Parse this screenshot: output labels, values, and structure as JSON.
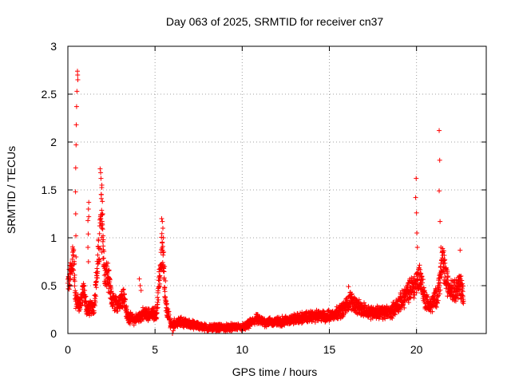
{
  "chart_data": {
    "type": "scatter",
    "title": "Day 063 of 2025, SRMTID for receiver cn37",
    "xlabel": "GPS time / hours",
    "ylabel": "SRMTID / TECUs",
    "xlim": [
      0,
      24
    ],
    "ylim": [
      0,
      3
    ],
    "xticks": [
      0,
      5,
      10,
      15,
      20
    ],
    "xtick_labels": [
      "0",
      "5",
      "10",
      "15",
      "20"
    ],
    "yticks": [
      0,
      0.5,
      1,
      1.5,
      2,
      2.5,
      3
    ],
    "ytick_labels": [
      "0",
      "0.5",
      "1",
      "1.5",
      "2",
      "2.5",
      "3"
    ],
    "grid": true,
    "marker": "+",
    "color": "#ff0000",
    "series": [
      {
        "name": "SRMTID",
        "profile": [
          [
            0.0,
            0.5
          ],
          [
            0.2,
            0.65
          ],
          [
            0.3,
            0.85
          ],
          [
            0.45,
            0.35
          ],
          [
            0.7,
            0.3
          ],
          [
            0.9,
            0.45
          ],
          [
            1.1,
            0.25
          ],
          [
            1.5,
            0.28
          ],
          [
            1.8,
            0.9
          ],
          [
            1.95,
            1.3
          ],
          [
            2.1,
            0.6
          ],
          [
            2.3,
            0.6
          ],
          [
            2.5,
            0.35
          ],
          [
            2.8,
            0.3
          ],
          [
            3.2,
            0.4
          ],
          [
            3.4,
            0.18
          ],
          [
            3.8,
            0.14
          ],
          [
            4.3,
            0.2
          ],
          [
            4.8,
            0.2
          ],
          [
            5.1,
            0.22
          ],
          [
            5.4,
            0.9
          ],
          [
            5.6,
            0.3
          ],
          [
            5.9,
            0.1
          ],
          [
            6.5,
            0.12
          ],
          [
            7.2,
            0.09
          ],
          [
            8.0,
            0.06
          ],
          [
            9.0,
            0.06
          ],
          [
            10.2,
            0.07
          ],
          [
            10.8,
            0.15
          ],
          [
            11.2,
            0.12
          ],
          [
            12.0,
            0.12
          ],
          [
            13.0,
            0.15
          ],
          [
            14.0,
            0.18
          ],
          [
            15.0,
            0.18
          ],
          [
            15.8,
            0.25
          ],
          [
            16.2,
            0.35
          ],
          [
            16.8,
            0.25
          ],
          [
            17.5,
            0.22
          ],
          [
            18.5,
            0.22
          ],
          [
            19.2,
            0.35
          ],
          [
            19.6,
            0.45
          ],
          [
            19.9,
            0.5
          ],
          [
            20.2,
            0.6
          ],
          [
            20.5,
            0.35
          ],
          [
            20.8,
            0.28
          ],
          [
            21.2,
            0.4
          ],
          [
            21.5,
            0.75
          ],
          [
            21.8,
            0.5
          ],
          [
            22.2,
            0.45
          ],
          [
            22.5,
            0.5
          ],
          [
            22.7,
            0.4
          ]
        ],
        "spikes": [
          [
            0.55,
            2.74
          ],
          [
            0.56,
            2.7
          ],
          [
            0.57,
            2.65
          ],
          [
            0.52,
            2.53
          ],
          [
            0.5,
            2.37
          ],
          [
            0.48,
            2.18
          ],
          [
            0.47,
            1.97
          ],
          [
            0.45,
            1.73
          ],
          [
            0.44,
            1.48
          ],
          [
            0.45,
            1.25
          ],
          [
            0.46,
            1.02
          ],
          [
            0.47,
            0.8
          ],
          [
            1.2,
            1.37
          ],
          [
            1.18,
            1.3
          ],
          [
            1.2,
            1.22
          ],
          [
            1.15,
            1.18
          ],
          [
            1.17,
            1.04
          ],
          [
            1.15,
            0.9
          ],
          [
            1.18,
            0.75
          ],
          [
            1.85,
            1.72
          ],
          [
            1.88,
            1.68
          ],
          [
            1.9,
            1.62
          ],
          [
            1.95,
            1.55
          ],
          [
            1.92,
            1.45
          ],
          [
            1.98,
            1.38
          ],
          [
            2.0,
            1.25
          ],
          [
            1.96,
            1.1
          ],
          [
            2.02,
            1.02
          ],
          [
            1.95,
            0.85
          ],
          [
            5.38,
            1.2
          ],
          [
            5.42,
            1.17
          ],
          [
            5.45,
            1.1
          ],
          [
            5.48,
            1.0
          ],
          [
            5.5,
            0.85
          ],
          [
            5.55,
            0.7
          ],
          [
            5.6,
            0.55
          ],
          [
            4.1,
            0.57
          ],
          [
            4.15,
            0.5
          ],
          [
            4.2,
            0.45
          ],
          [
            6.0,
            0.0
          ],
          [
            6.05,
            0.03
          ],
          [
            16.1,
            0.49
          ],
          [
            19.98,
            1.62
          ],
          [
            19.95,
            1.42
          ],
          [
            20.0,
            1.26
          ],
          [
            20.02,
            1.05
          ],
          [
            20.05,
            0.9
          ],
          [
            21.3,
            2.12
          ],
          [
            21.33,
            1.81
          ],
          [
            21.3,
            1.49
          ],
          [
            21.35,
            1.17
          ],
          [
            21.4,
            0.9
          ],
          [
            22.5,
            0.87
          ],
          [
            22.55,
            0.6
          ]
        ]
      }
    ]
  }
}
